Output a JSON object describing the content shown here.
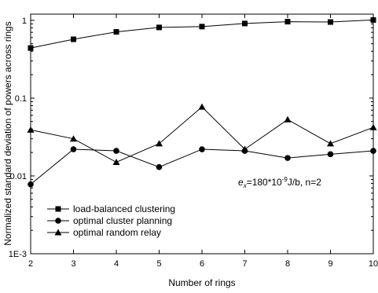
{
  "chart_data": {
    "type": "line",
    "title": "",
    "xlabel": "Number of rings",
    "ylabel": "Normalized standard deviation of powers across rings",
    "yscale": "log",
    "xlim": [
      2,
      10
    ],
    "ylim": [
      0.001,
      1.2
    ],
    "xticks": [
      2,
      3,
      4,
      5,
      6,
      7,
      8,
      9,
      10
    ],
    "xtick_labels": [
      "2",
      "3",
      "4",
      "5",
      "6",
      "7",
      "8",
      "9",
      "10"
    ],
    "yticks": [
      0.001,
      0.01,
      0.1,
      1
    ],
    "ytick_labels": [
      "1E-3",
      "0.01",
      "0.1",
      "1"
    ],
    "grid": false,
    "legend_position": "lower-left",
    "annotation": {
      "base": "e",
      "subscript": "x",
      "mid": "=180*10",
      "superscript": "-9",
      "tail": "J/b, n=2"
    },
    "x": [
      2,
      3,
      4,
      5,
      6,
      7,
      8,
      9,
      10
    ],
    "series": [
      {
        "name": "load-balanced clustering",
        "marker": "square",
        "values": [
          0.44,
          0.57,
          0.71,
          0.81,
          0.83,
          0.91,
          0.96,
          0.95,
          1.01
        ]
      },
      {
        "name": "optimal cluster planning",
        "marker": "circle",
        "values": [
          0.0078,
          0.022,
          0.021,
          0.013,
          0.022,
          0.021,
          0.017,
          0.019,
          0.021
        ]
      },
      {
        "name": "optimal random relay",
        "marker": "triangle",
        "values": [
          0.039,
          0.03,
          0.015,
          0.026,
          0.077,
          0.022,
          0.053,
          0.026,
          0.042
        ]
      }
    ]
  }
}
